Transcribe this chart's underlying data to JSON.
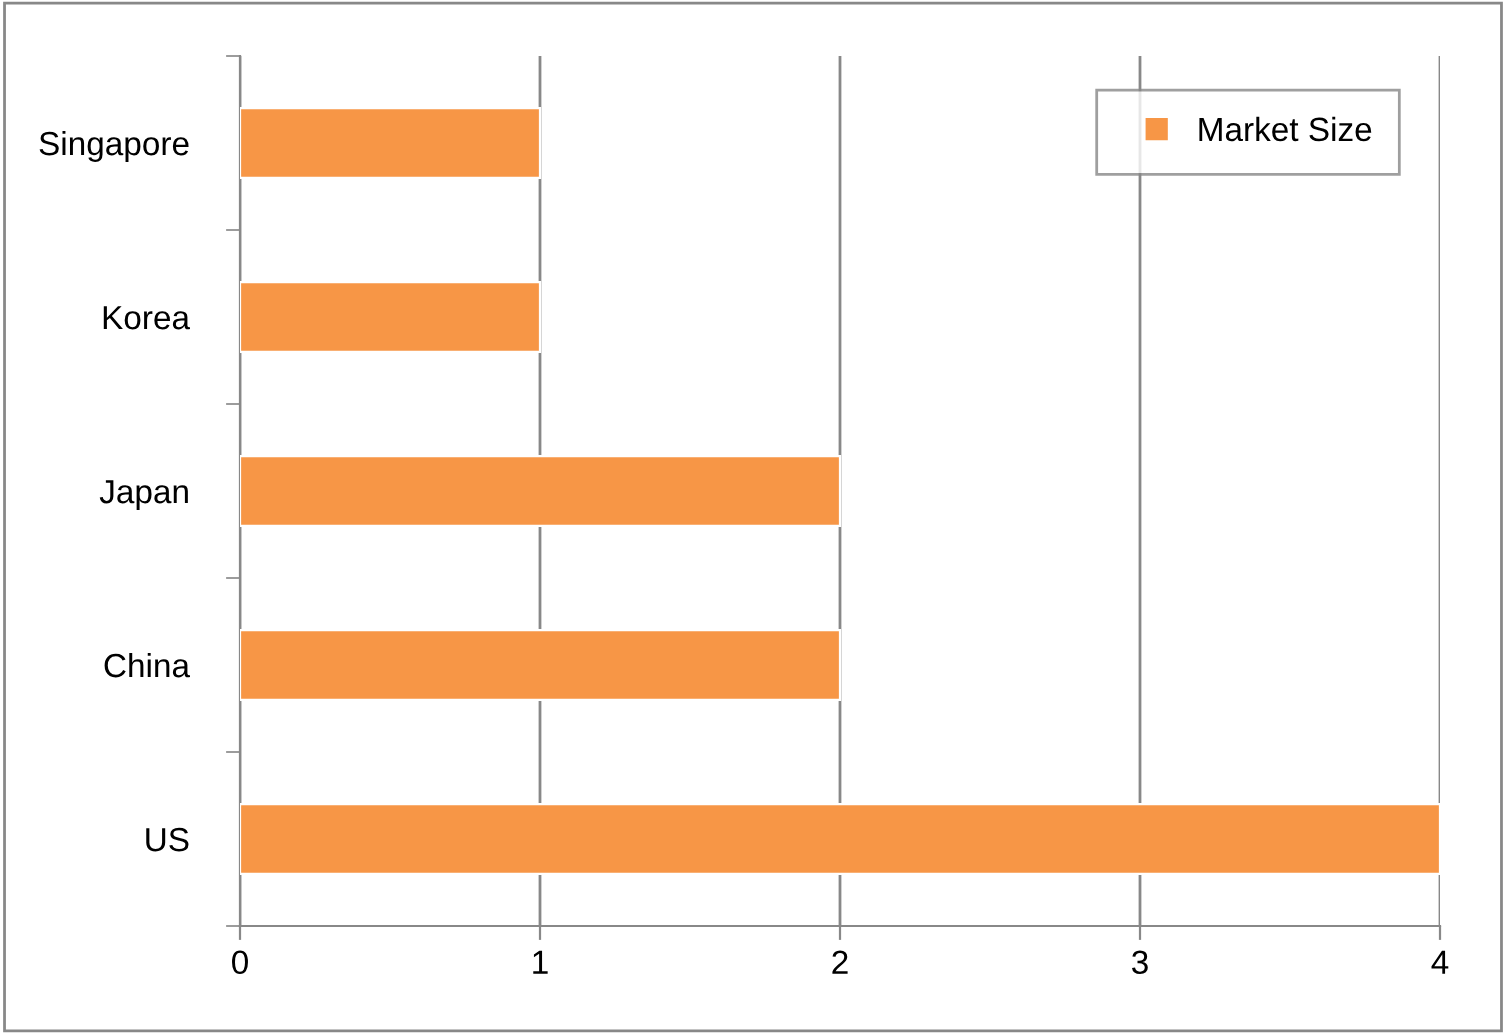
{
  "chart_data": {
    "type": "bar",
    "orientation": "horizontal",
    "categories": [
      "Singapore",
      "Korea",
      "Japan",
      "China",
      "US"
    ],
    "series": [
      {
        "name": "Market Size",
        "color": "#f79646",
        "values": [
          1,
          1,
          2,
          2,
          4
        ]
      }
    ],
    "xlim": [
      0,
      4
    ],
    "xticks": [
      0,
      1,
      2,
      3,
      4
    ],
    "grid": "x",
    "legend": "top right"
  }
}
